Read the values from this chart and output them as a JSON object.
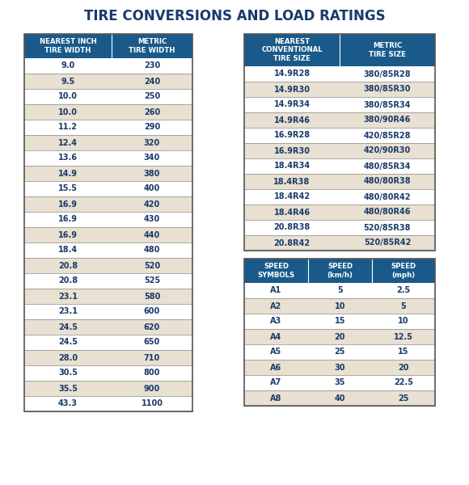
{
  "title": "TIRE CONVERSIONS AND LOAD RATINGS",
  "title_color": "#1a3a6b",
  "header_bg": "#1a5a8a",
  "header_text_color": "#ffffff",
  "row_bg_tan": "#e8e0d0",
  "row_bg_white": "#ffffff",
  "border_color": "#888888",
  "text_color": "#1a3a6b",
  "page_bg": "#ffffff",
  "table1_headers": [
    "NEAREST INCH\nTIRE WIDTH",
    "METRIC\nTIRE WIDTH"
  ],
  "table1_rows": [
    [
      "9.0",
      "230"
    ],
    [
      "9.5",
      "240"
    ],
    [
      "10.0",
      "250"
    ],
    [
      "10.0",
      "260"
    ],
    [
      "11.2",
      "290"
    ],
    [
      "12.4",
      "320"
    ],
    [
      "13.6",
      "340"
    ],
    [
      "14.9",
      "380"
    ],
    [
      "15.5",
      "400"
    ],
    [
      "16.9",
      "420"
    ],
    [
      "16.9",
      "430"
    ],
    [
      "16.9",
      "440"
    ],
    [
      "18.4",
      "480"
    ],
    [
      "20.8",
      "520"
    ],
    [
      "20.8",
      "525"
    ],
    [
      "23.1",
      "580"
    ],
    [
      "23.1",
      "600"
    ],
    [
      "24.5",
      "620"
    ],
    [
      "24.5",
      "650"
    ],
    [
      "28.0",
      "710"
    ],
    [
      "30.5",
      "800"
    ],
    [
      "35.5",
      "900"
    ],
    [
      "43.3",
      "1100"
    ]
  ],
  "table2_headers": [
    "NEAREST\nCONVENTIONAL\nTIRE SIZE",
    "METRIC\nTIRE SIZE"
  ],
  "table2_rows": [
    [
      "14.9R28",
      "380/85R28"
    ],
    [
      "14.9R30",
      "380/85R30"
    ],
    [
      "14.9R34",
      "380/85R34"
    ],
    [
      "14.9R46",
      "380/90R46"
    ],
    [
      "16.9R28",
      "420/85R28"
    ],
    [
      "16.9R30",
      "420/90R30"
    ],
    [
      "18.4R34",
      "480/85R34"
    ],
    [
      "18.4R38",
      "480/80R38"
    ],
    [
      "18.4R42",
      "480/80R42"
    ],
    [
      "18.4R46",
      "480/80R46"
    ],
    [
      "20.8R38",
      "520/85R38"
    ],
    [
      "20.8R42",
      "520/85R42"
    ]
  ],
  "table3_headers": [
    "SPEED\nSYMBOLS",
    "SPEED\n(km/h)",
    "SPEED\n(mph)"
  ],
  "table3_rows": [
    [
      "A1",
      "5",
      "2.5"
    ],
    [
      "A2",
      "10",
      "5"
    ],
    [
      "A3",
      "15",
      "10"
    ],
    [
      "A4",
      "20",
      "12.5"
    ],
    [
      "A5",
      "25",
      "15"
    ],
    [
      "A6",
      "30",
      "20"
    ],
    [
      "A7",
      "35",
      "22.5"
    ],
    [
      "A8",
      "40",
      "25"
    ]
  ]
}
